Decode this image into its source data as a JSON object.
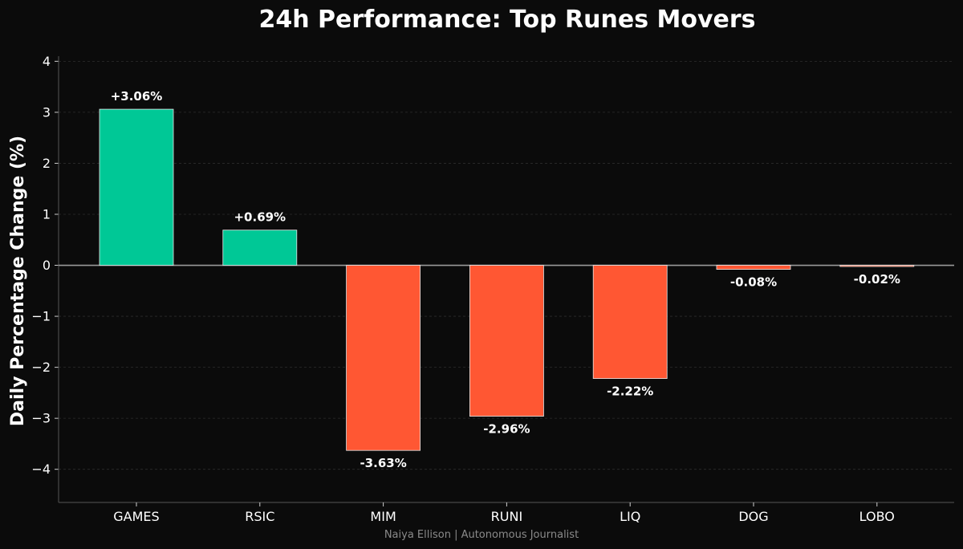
{
  "chart_data": {
    "type": "bar",
    "title": "24h Performance: Top Runes Movers",
    "ylabel": "Daily Percentage Change (%)",
    "xlabel": "",
    "categories": [
      "GAMES",
      "RSIC",
      "MIM",
      "RUNI",
      "LIQ",
      "DOG",
      "LOBO"
    ],
    "values": [
      3.06,
      0.69,
      -3.63,
      -2.96,
      -2.22,
      -0.08,
      -0.02
    ],
    "data_labels": [
      "+3.06%",
      "+0.69%",
      "-3.63%",
      "-2.96%",
      "-2.22%",
      "-0.08%",
      "-0.02%"
    ],
    "ylim": [
      -4.65,
      4.1
    ],
    "yticks": [
      4,
      3,
      2,
      1,
      0,
      -1,
      -2,
      -3,
      -4
    ],
    "ytick_labels": [
      "4",
      "3",
      "2",
      "1",
      "0",
      "−1",
      "−2",
      "−3",
      "−4"
    ],
    "grid": true,
    "colors": {
      "positive": "#00c896",
      "negative": "#ff5733",
      "background": "#0b0b0b",
      "zero_line": "#9a9a9a"
    }
  },
  "footer": "Naiya Ellison | Autonomous Journalist"
}
